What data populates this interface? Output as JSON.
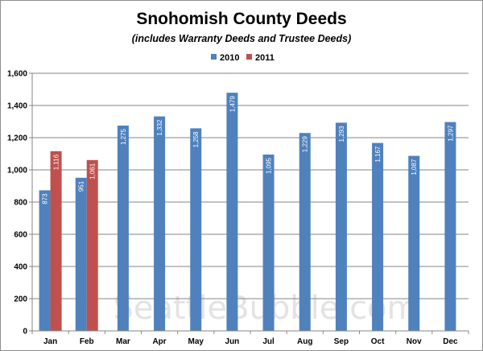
{
  "chart_data": {
    "type": "bar",
    "title": "Snohomish County Deeds",
    "subtitle": "(includes Warranty Deeds and Trustee Deeds)",
    "categories": [
      "Jan",
      "Feb",
      "Mar",
      "Apr",
      "May",
      "Jun",
      "Jul",
      "Aug",
      "Sep",
      "Oct",
      "Nov",
      "Dec"
    ],
    "series": [
      {
        "name": "2010",
        "color": "#4f81bd",
        "values": [
          873,
          951,
          1275,
          1332,
          1258,
          1479,
          1095,
          1229,
          1293,
          1167,
          1087,
          1297
        ]
      },
      {
        "name": "2011",
        "color": "#c0504d",
        "values": [
          1116,
          1061,
          null,
          null,
          null,
          null,
          null,
          null,
          null,
          null,
          null,
          null
        ]
      }
    ],
    "data_labels": {
      "2010": [
        "873",
        "951",
        "1,275",
        "1,332",
        "1,258",
        "1,479",
        "1,095",
        "1,229",
        "1,293",
        "1,167",
        "1,087",
        "1,297"
      ],
      "2011": [
        "1,116",
        "1,061",
        null,
        null,
        null,
        null,
        null,
        null,
        null,
        null,
        null,
        null
      ]
    },
    "ylim": [
      0,
      1600
    ],
    "yticks": [
      0,
      200,
      400,
      600,
      800,
      1000,
      1200,
      1400,
      1600
    ],
    "ytick_labels": [
      "0",
      "200",
      "400",
      "600",
      "800",
      "1,000",
      "1,200",
      "1,400",
      "1,600"
    ],
    "grid": true,
    "legend_position": "top-center",
    "watermark": "SeattleBubble.com"
  }
}
